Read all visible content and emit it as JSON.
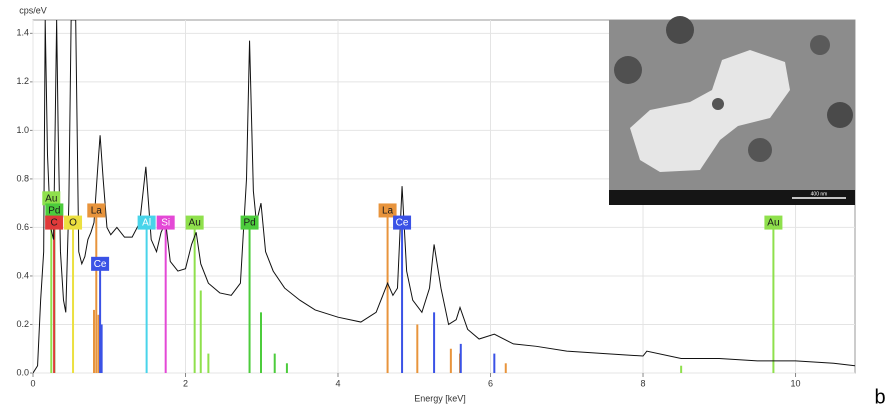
{
  "chart_data": {
    "type": "spectrum",
    "y_label": "cps/eV",
    "x_label": "Energy [keV]",
    "panel_label": "b",
    "xlim": [
      0,
      10.78
    ],
    "ylim": [
      0,
      1.455
    ],
    "xticks": [
      0,
      2,
      4,
      6,
      8,
      10
    ],
    "yticks": [
      {
        "value": 0,
        "label": "0.0"
      },
      0.2,
      0.4,
      0.6,
      0.8,
      {
        "value": 1,
        "label": "1.0"
      },
      1.2,
      1.4
    ],
    "grid": true,
    "line_color": "#111111",
    "x": [
      0,
      0.06,
      0.1,
      0.14,
      0.16,
      0.19,
      0.23,
      0.27,
      0.31,
      0.33,
      0.36,
      0.4,
      0.43,
      0.47,
      0.5,
      0.56,
      0.6,
      0.64,
      0.68,
      0.72,
      0.76,
      0.8,
      0.85,
      0.88,
      0.92,
      0.97,
      1.02,
      1.1,
      1.2,
      1.3,
      1.4,
      1.48,
      1.55,
      1.62,
      1.68,
      1.74,
      1.8,
      1.9,
      2.0,
      2.08,
      2.14,
      2.2,
      2.3,
      2.45,
      2.6,
      2.72,
      2.8,
      2.84,
      2.89,
      2.93,
      2.99,
      3.05,
      3.15,
      3.3,
      3.5,
      3.7,
      4.0,
      4.3,
      4.5,
      4.6,
      4.65,
      4.72,
      4.78,
      4.84,
      4.9,
      4.98,
      5.1,
      5.2,
      5.26,
      5.35,
      5.45,
      5.55,
      5.6,
      5.7,
      5.85,
      6.05,
      6.3,
      6.6,
      7.0,
      7.5,
      8.0,
      8.05,
      8.5,
      9.0,
      9.5,
      10.0,
      10.5,
      10.78
    ],
    "values": [
      0.0,
      0.03,
      0.3,
      0.5,
      1.455,
      0.9,
      0.6,
      0.55,
      1.455,
      1.0,
      0.5,
      0.3,
      0.25,
      0.7,
      1.455,
      1.455,
      0.5,
      0.45,
      0.48,
      0.55,
      0.58,
      0.62,
      0.85,
      0.98,
      0.8,
      0.6,
      0.57,
      0.6,
      0.56,
      0.56,
      0.62,
      0.85,
      0.55,
      0.5,
      0.58,
      0.62,
      0.46,
      0.42,
      0.43,
      0.53,
      0.58,
      0.45,
      0.37,
      0.33,
      0.32,
      0.37,
      0.8,
      1.37,
      0.75,
      0.62,
      0.7,
      0.5,
      0.42,
      0.35,
      0.3,
      0.26,
      0.23,
      0.21,
      0.25,
      0.33,
      0.37,
      0.32,
      0.35,
      0.77,
      0.42,
      0.3,
      0.25,
      0.35,
      0.53,
      0.35,
      0.2,
      0.22,
      0.27,
      0.18,
      0.14,
      0.16,
      0.12,
      0.11,
      0.09,
      0.08,
      0.07,
      0.09,
      0.06,
      0.06,
      0.05,
      0.05,
      0.04,
      0.03
    ],
    "elements": [
      {
        "name": "Au",
        "color": "#8fe04c",
        "text_color": "#1a1a1a",
        "peaks": {
          "energies": [
            0.24,
            2.12,
            9.71
          ],
          "heights": [
            0.72,
            0.62,
            0.62
          ]
        },
        "lines": {
          "energies": [
            2.2,
            2.3,
            8.5
          ],
          "heights": [
            0.34,
            0.08,
            0.03
          ]
        }
      },
      {
        "name": "Pd",
        "color": "#4ccc3c",
        "text_color": "#1a1a1a",
        "peaks": {
          "energies": [
            0.28,
            2.84
          ],
          "heights": [
            0.67,
            0.62
          ]
        },
        "lines": {
          "energies": [
            2.99,
            3.17,
            3.33
          ],
          "heights": [
            0.25,
            0.08,
            0.04
          ]
        }
      },
      {
        "name": "C",
        "color": "#e03a3a",
        "text_color": "#1a1a1a",
        "peaks": {
          "energies": [
            0.277
          ],
          "heights": [
            0.62
          ]
        },
        "lines": {
          "energies": [],
          "heights": []
        }
      },
      {
        "name": "O",
        "color": "#ece040",
        "text_color": "#1a1a1a",
        "peaks": {
          "energies": [
            0.525
          ],
          "heights": [
            0.62
          ]
        },
        "lines": {
          "energies": [],
          "heights": []
        }
      },
      {
        "name": "La",
        "color": "#e8943c",
        "text_color": "#1a1a1a",
        "peaks": {
          "energies": [
            0.83,
            4.65
          ],
          "heights": [
            0.67,
            0.67
          ]
        },
        "lines": {
          "energies": [
            0.8,
            0.86,
            5.04,
            5.48,
            5.6,
            6.2
          ],
          "heights": [
            0.26,
            0.24,
            0.2,
            0.1,
            0.08,
            0.04
          ]
        }
      },
      {
        "name": "Ce",
        "color": "#3a52e6",
        "text_color": "#ffffff",
        "peaks": {
          "energies": [
            0.88,
            4.84
          ],
          "heights": [
            0.45,
            0.62
          ]
        },
        "lines": {
          "energies": [
            0.9,
            5.26,
            5.61,
            6.05
          ],
          "heights": [
            0.2,
            0.25,
            0.12,
            0.08
          ]
        }
      },
      {
        "name": "Al",
        "color": "#48d4ea",
        "text_color": "#ffffff",
        "peaks": {
          "energies": [
            1.49
          ],
          "heights": [
            0.62
          ]
        },
        "lines": {
          "energies": [],
          "heights": []
        }
      },
      {
        "name": "Si",
        "color": "#e448d6",
        "text_color": "#ffffff",
        "peaks": {
          "energies": [
            1.74
          ],
          "heights": [
            0.62
          ]
        },
        "lines": {
          "energies": [],
          "heights": []
        }
      }
    ],
    "inset": {
      "scale_label": "400 nm"
    }
  }
}
